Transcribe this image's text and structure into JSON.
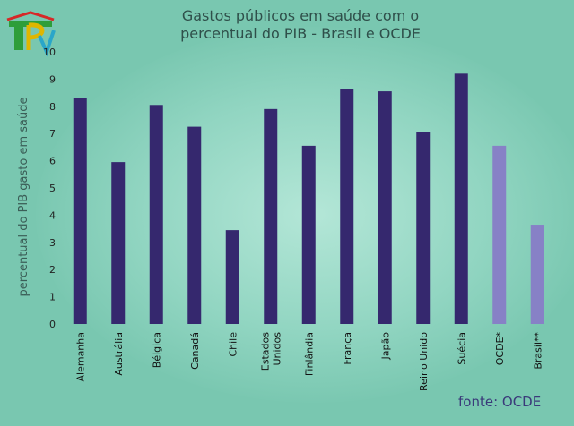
{
  "chart_data": {
    "type": "bar",
    "title_line1": "Gastos públicos em saúde com o",
    "title_line2": "percentual do PIB - Brasil e OCDE",
    "ylabel": "percentual do PIB gasto em saúde",
    "ylim": [
      0,
      10
    ],
    "yticks": [
      0,
      1,
      2,
      3,
      4,
      5,
      6,
      7,
      8,
      9,
      10
    ],
    "grid": false,
    "categories": [
      [
        "Alemanha"
      ],
      [
        "Austrália"
      ],
      [
        "Bélgica"
      ],
      [
        "Canadá"
      ],
      [
        "Chile"
      ],
      [
        "Estados",
        "Unidos"
      ],
      [
        "Finlândia"
      ],
      [
        "França"
      ],
      [
        "Japão"
      ],
      [
        "Reino Unido"
      ],
      [
        "Suécia"
      ],
      [
        "OCDE*"
      ],
      [
        "Brasil**"
      ]
    ],
    "values": [
      8.3,
      5.95,
      8.05,
      7.25,
      3.45,
      7.9,
      6.55,
      8.65,
      8.55,
      7.05,
      9.2,
      6.55,
      3.65
    ],
    "colors": {
      "country": "#35286e",
      "aggregate": "#8781c6"
    },
    "highlighted": [
      "OCDE*",
      "Brasil**"
    ]
  },
  "source": "fonte: OCDE"
}
